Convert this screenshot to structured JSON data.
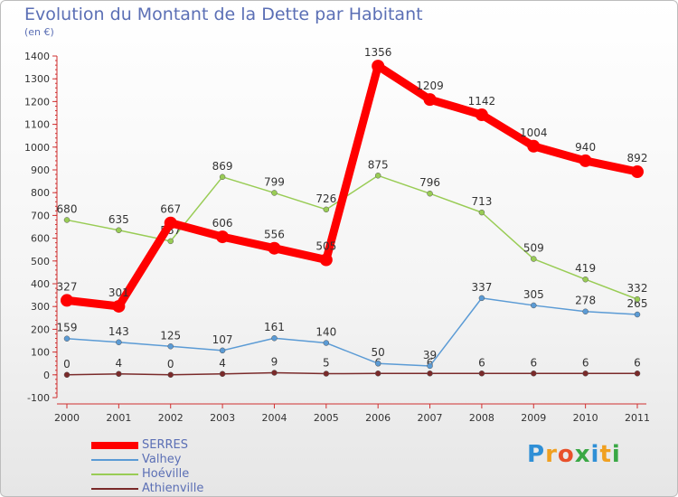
{
  "header": {
    "title": "Evolution du Montant de la Dette par Habitant",
    "subtitle": "(en €)"
  },
  "logo": {
    "text": "Proxiti",
    "letters": [
      {
        "ch": "P",
        "color": "#2f8fd6"
      },
      {
        "ch": "r",
        "color": "#f0a020"
      },
      {
        "ch": "o",
        "color": "#e8502a"
      },
      {
        "ch": "x",
        "color": "#3aa845"
      },
      {
        "ch": "i",
        "color": "#2f8fd6"
      },
      {
        "ch": "t",
        "color": "#f0a020"
      },
      {
        "ch": "i",
        "color": "#3aa845"
      }
    ]
  },
  "chart_data": {
    "type": "line",
    "title": "Evolution du Montant de la Dette par Habitant",
    "subtitle": "(en €)",
    "x": [
      "2000",
      "2001",
      "2002",
      "2003",
      "2004",
      "2005",
      "2006",
      "2007",
      "2008",
      "2009",
      "2010",
      "2011"
    ],
    "ylim": [
      -100,
      1400
    ],
    "yticks": [
      -100,
      0,
      100,
      200,
      300,
      400,
      500,
      600,
      700,
      800,
      900,
      1000,
      1100,
      1200,
      1300,
      1400
    ],
    "grid": false,
    "legend_position": "bottom-left",
    "series": [
      {
        "name": "SERRES",
        "color": "#ff0000",
        "values": [
          327,
          301,
          667,
          606,
          556,
          505,
          1356,
          1209,
          1142,
          1004,
          940,
          892
        ]
      },
      {
        "name": "Valhey",
        "color": "#5b9bd5",
        "values": [
          159,
          143,
          125,
          107,
          161,
          140,
          50,
          39,
          337,
          305,
          278,
          265
        ]
      },
      {
        "name": "Hoéville",
        "color": "#99cc55",
        "values": [
          680,
          635,
          587,
          869,
          799,
          726,
          875,
          796,
          713,
          509,
          419,
          332
        ]
      },
      {
        "name": "Athienville",
        "color": "#7a2a2a",
        "values": [
          0,
          4,
          0,
          4,
          9,
          5,
          6,
          6,
          6,
          6,
          6,
          6
        ]
      }
    ]
  }
}
